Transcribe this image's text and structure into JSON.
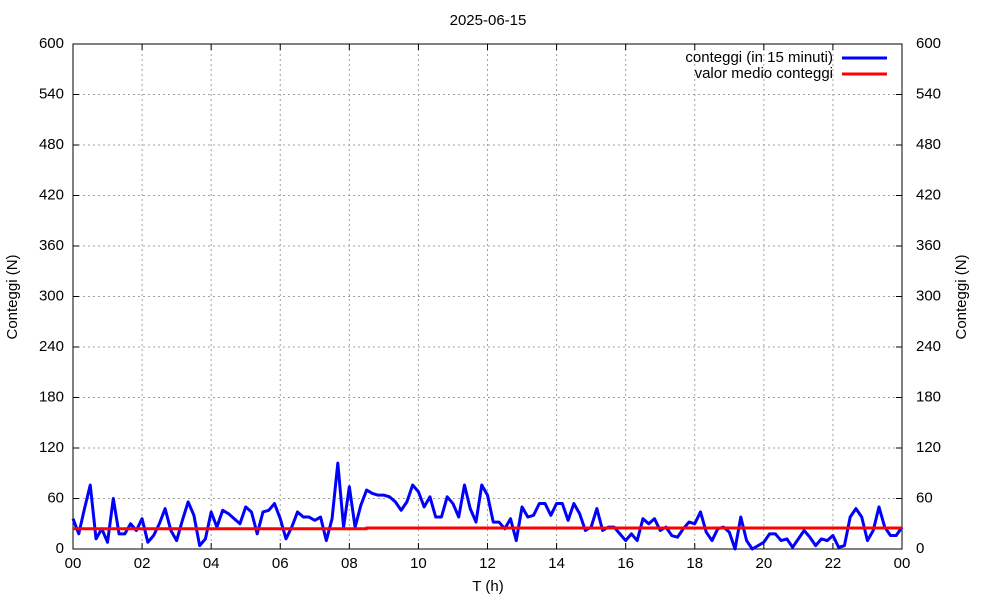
{
  "chart_data": {
    "type": "line",
    "title": "2025-06-15",
    "xlabel": "T (h)",
    "ylabel": "Conteggi (N)",
    "y2label": "Conteggi (N)",
    "xlim": [
      0,
      24
    ],
    "ylim": [
      0,
      600
    ],
    "y2lim": [
      0,
      600
    ],
    "xticks": [
      {
        "value": 0,
        "label": "00"
      },
      {
        "value": 2,
        "label": "02"
      },
      {
        "value": 4,
        "label": "04"
      },
      {
        "value": 6,
        "label": "06"
      },
      {
        "value": 8,
        "label": "08"
      },
      10,
      12,
      14,
      16,
      18,
      20,
      22,
      {
        "value": 24,
        "label": "00"
      }
    ],
    "yticks": [
      0,
      60,
      120,
      180,
      240,
      300,
      360,
      420,
      480,
      540,
      600
    ],
    "y2ticks": [
      0,
      60,
      120,
      180,
      240,
      300,
      360,
      420,
      480,
      540,
      600
    ],
    "grid": true,
    "legend": "upper right",
    "series": [
      {
        "name": "conteggi (in 15 minuti)",
        "color": "#0000ff",
        "x": [
          0,
          0.1667,
          0.3333,
          0.5,
          0.6667,
          0.8333,
          1,
          1.1667,
          1.3333,
          1.5,
          1.6667,
          1.8333,
          2,
          2.1667,
          2.3333,
          2.5,
          2.6667,
          2.8333,
          3,
          3.1667,
          3.3333,
          3.5,
          3.6667,
          3.8333,
          4,
          4.1667,
          4.3333,
          4.5,
          4.6667,
          4.8333,
          5,
          5.1667,
          5.3333,
          5.5,
          5.6667,
          5.8333,
          6,
          6.1667,
          6.3333,
          6.5,
          6.6667,
          6.8333,
          7,
          7.1667,
          7.3333,
          7.5,
          7.6667,
          7.8333,
          8,
          8.1667,
          8.3333,
          8.5,
          8.6667,
          8.8333,
          9,
          9.1667,
          9.3333,
          9.5,
          9.6667,
          9.8333,
          10,
          10.1667,
          10.3333,
          10.5,
          10.6667,
          10.8333,
          11,
          11.1667,
          11.3333,
          11.5,
          11.6667,
          11.8333,
          12,
          12.1667,
          12.3333,
          12.5,
          12.6667,
          12.8333,
          13,
          13.1667,
          13.3333,
          13.5,
          13.6667,
          13.8333,
          14,
          14.1667,
          14.3333,
          14.5,
          14.6667,
          14.8333,
          15,
          15.1667,
          15.3333,
          15.5,
          15.6667,
          15.8333,
          16,
          16.1667,
          16.3333,
          16.5,
          16.6667,
          16.8333,
          17,
          17.1667,
          17.3333,
          17.5,
          17.6667,
          17.8333,
          18,
          18.1667,
          18.3333,
          18.5,
          18.6667,
          18.8333,
          19,
          19.1667,
          19.3333,
          19.5,
          19.6667,
          19.8333,
          20,
          20.1667,
          20.3333,
          20.5,
          20.6667,
          20.8333,
          21,
          21.1667,
          21.3333,
          21.5,
          21.6667,
          21.8333,
          22,
          22.1667,
          22.3333,
          22.5,
          22.6667,
          22.8333,
          23,
          23.1667,
          23.3333,
          23.5,
          23.6667,
          23.8333,
          24
        ],
        "values": [
          36,
          18,
          48,
          76,
          12,
          24,
          8,
          60,
          18,
          18,
          30,
          22,
          36,
          8,
          16,
          30,
          48,
          22,
          10,
          34,
          56,
          40,
          4,
          12,
          44,
          26,
          46,
          42,
          36,
          30,
          50,
          44,
          18,
          44,
          46,
          54,
          36,
          12,
          26,
          44,
          38,
          38,
          34,
          38,
          10,
          36,
          102,
          26,
          74,
          26,
          52,
          70,
          66,
          64,
          64,
          62,
          56,
          46,
          56,
          76,
          68,
          50,
          62,
          38,
          38,
          62,
          54,
          38,
          76,
          48,
          32,
          76,
          64,
          32,
          32,
          24,
          36,
          10,
          50,
          38,
          40,
          54,
          54,
          40,
          54,
          54,
          34,
          54,
          42,
          22,
          26,
          48,
          22,
          26,
          26,
          18,
          10,
          18,
          10,
          36,
          30,
          36,
          22,
          26,
          16,
          14,
          24,
          32,
          30,
          44,
          20,
          10,
          24,
          26,
          20,
          0,
          38,
          10,
          0,
          4,
          8,
          18,
          18,
          10,
          12,
          2,
          12,
          22,
          14,
          4,
          12,
          10,
          16,
          2,
          4,
          38,
          48,
          38,
          10,
          22,
          50,
          26,
          16,
          16,
          26
        ]
      },
      {
        "name": "valor medio conteggi",
        "color": "#ff0000",
        "x": [
          0,
          8.5,
          8.5,
          24
        ],
        "values": [
          24,
          24,
          25,
          25
        ]
      }
    ]
  }
}
